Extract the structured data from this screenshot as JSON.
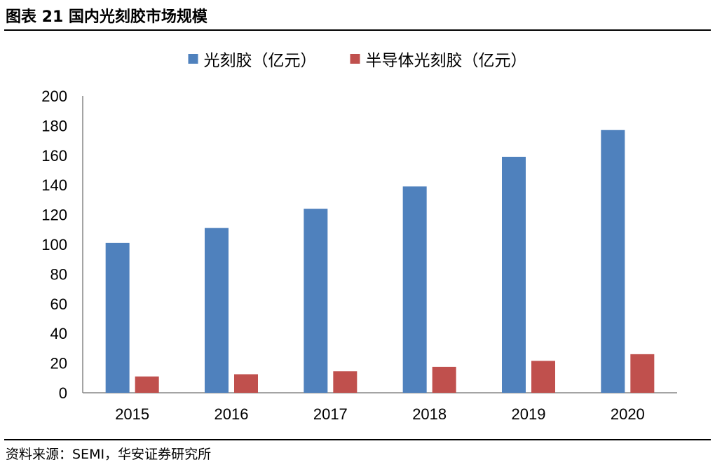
{
  "figure": {
    "title": "图表 21 国内光刻胶市场规模",
    "source": "资料来源：SEMI，华安证券研究所"
  },
  "chart_data": {
    "type": "bar",
    "categories": [
      "2015",
      "2016",
      "2017",
      "2018",
      "2019",
      "2020"
    ],
    "series": [
      {
        "name": "光刻胶（亿元）",
        "values": [
          101,
          111,
          124,
          139,
          159,
          177
        ],
        "color": "#4f81bd"
      },
      {
        "name": "半导体光刻胶（亿元）",
        "values": [
          11,
          12.5,
          14.5,
          17.5,
          21.5,
          26
        ],
        "color": "#c0504d"
      }
    ],
    "ylim": [
      0,
      200
    ],
    "yticks": [
      "0",
      "20",
      "40",
      "60",
      "80",
      "100",
      "120",
      "140",
      "160",
      "180",
      "200"
    ],
    "legend": "top-center",
    "grid": false
  }
}
